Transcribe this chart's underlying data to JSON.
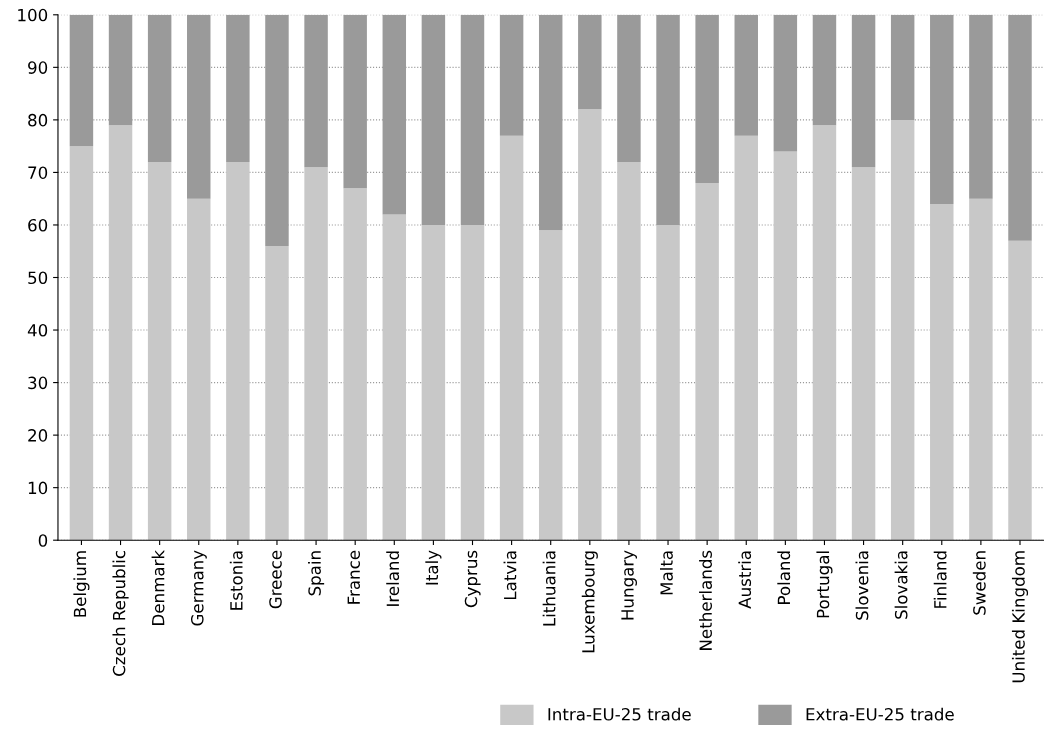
{
  "chart_data": {
    "type": "bar",
    "stacked": true,
    "categories": [
      "Belgium",
      "Czech Republic",
      "Denmark",
      "Germany",
      "Estonia",
      "Greece",
      "Spain",
      "France",
      "Ireland",
      "Italy",
      "Cyprus",
      "Latvia",
      "Lithuania",
      "Luxembourg",
      "Hungary",
      "Malta",
      "Netherlands",
      "Austria",
      "Poland",
      "Portugal",
      "Slovenia",
      "Slovakia",
      "Finland",
      "Sweden",
      "United Kingdom"
    ],
    "series": [
      {
        "name": "Intra-EU-25 trade",
        "color": "#c8c8c8",
        "values": [
          75,
          79,
          72,
          65,
          72,
          56,
          71,
          67,
          62,
          60,
          60,
          77,
          59,
          82,
          72,
          60,
          68,
          77,
          74,
          79,
          71,
          80,
          64,
          65,
          57
        ]
      },
      {
        "name": "Extra-EU-25 trade",
        "color": "#9a9a9a",
        "values": [
          25,
          21,
          28,
          35,
          28,
          44,
          29,
          33,
          38,
          40,
          40,
          23,
          41,
          18,
          28,
          40,
          32,
          23,
          26,
          21,
          29,
          20,
          36,
          35,
          43
        ]
      }
    ],
    "ylim": [
      0,
      100
    ],
    "yticks": [
      0,
      10,
      20,
      30,
      40,
      50,
      60,
      70,
      80,
      90,
      100
    ],
    "grid": "y",
    "legend": "bottom"
  }
}
